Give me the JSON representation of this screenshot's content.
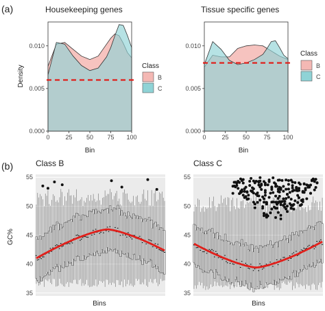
{
  "panel_labels": {
    "a": "(a)",
    "b": "(b)"
  },
  "colors": {
    "class_b": "#f4b8b4",
    "class_c": "#8fd3d6",
    "overlap": "#a9c5c2",
    "threshold": "#e0201b",
    "trend": "#e0201b",
    "box": "#555555",
    "panel_bg": "#ebebeb"
  },
  "chart_data": [
    {
      "type": "area",
      "title": "Housekeeping genes",
      "xlabel": "Bin",
      "ylabel": "Density",
      "xlim": [
        0,
        100
      ],
      "ylim": [
        0,
        0.0128
      ],
      "xticks": [
        "0",
        "25",
        "50",
        "75",
        "100"
      ],
      "yticks": [
        "0.000",
        "0.005",
        "0.010"
      ],
      "legend": {
        "title": "Class",
        "items": [
          "B",
          "C"
        ],
        "position": "right"
      },
      "threshold": 0.006,
      "x": [
        0,
        10,
        20,
        30,
        40,
        50,
        60,
        70,
        75,
        80,
        85,
        90,
        95,
        100
      ],
      "series": [
        {
          "name": "B",
          "values": [
            0.0076,
            0.0102,
            0.0104,
            0.0096,
            0.0088,
            0.0084,
            0.0088,
            0.0102,
            0.0109,
            0.0114,
            0.0112,
            0.0103,
            0.0092,
            0.0086
          ]
        },
        {
          "name": "C",
          "values": [
            0.0066,
            0.0104,
            0.0102,
            0.0088,
            0.0077,
            0.0071,
            0.0074,
            0.0087,
            0.0098,
            0.0112,
            0.0125,
            0.0124,
            0.0112,
            0.0098
          ]
        }
      ]
    },
    {
      "type": "area",
      "title": "Tissue specific genes",
      "xlabel": "Bin",
      "ylabel": "",
      "xlim": [
        0,
        100
      ],
      "ylim": [
        0,
        0.0128
      ],
      "xticks": [
        "0",
        "25",
        "50",
        "75",
        "100"
      ],
      "yticks": [
        "0.000",
        "0.005",
        "0.010"
      ],
      "legend": {
        "title": "Class",
        "items": [
          "B",
          "C"
        ],
        "position": "right"
      },
      "threshold": 0.008,
      "x": [
        0,
        10,
        20,
        30,
        40,
        50,
        60,
        70,
        75,
        80,
        85,
        90,
        95,
        100
      ],
      "series": [
        {
          "name": "B",
          "values": [
            0.0075,
            0.0089,
            0.0087,
            0.0087,
            0.0097,
            0.01,
            0.0101,
            0.01,
            0.0097,
            0.0094,
            0.0091,
            0.0088,
            0.0086,
            0.0084
          ]
        },
        {
          "name": "C",
          "values": [
            0.0078,
            0.0105,
            0.0096,
            0.0083,
            0.0078,
            0.008,
            0.0084,
            0.009,
            0.0097,
            0.0105,
            0.0106,
            0.0098,
            0.0089,
            0.0085
          ]
        }
      ]
    },
    {
      "type": "box",
      "title": "Class B",
      "xlabel": "Bins",
      "ylabel": "GC%",
      "ylim": [
        34.5,
        55.5
      ],
      "yticks": [
        "35",
        "40",
        "45",
        "50",
        "55"
      ],
      "bins": 100,
      "trend": {
        "ends": 41,
        "peak": 46,
        "peak_bin": 55
      },
      "box_half_height": 3.2,
      "whisker_low": 36,
      "whisker_high": 53,
      "outliers": [
        [
          5,
          53.5
        ],
        [
          9,
          53.1
        ],
        [
          14,
          54.2
        ],
        [
          20,
          53.7
        ],
        [
          58,
          54.4
        ],
        [
          66,
          53.3
        ],
        [
          86,
          54.6
        ],
        [
          93,
          52.9
        ]
      ]
    },
    {
      "type": "box",
      "title": "Class C",
      "xlabel": "Bins",
      "ylabel": "",
      "ylim": [
        34.5,
        55.5
      ],
      "yticks": [
        "35",
        "40",
        "45",
        "50",
        "55"
      ],
      "bins": 100,
      "trend": {
        "ends": 44,
        "trough": 39.4,
        "trough_bin": 48
      },
      "box_half_height": 3.0,
      "whisker_low": 35.5,
      "whisker_high": 52,
      "outlier_region": {
        "bin_from": 30,
        "bin_to": 95,
        "y_from": 47,
        "y_to": 55
      }
    }
  ]
}
